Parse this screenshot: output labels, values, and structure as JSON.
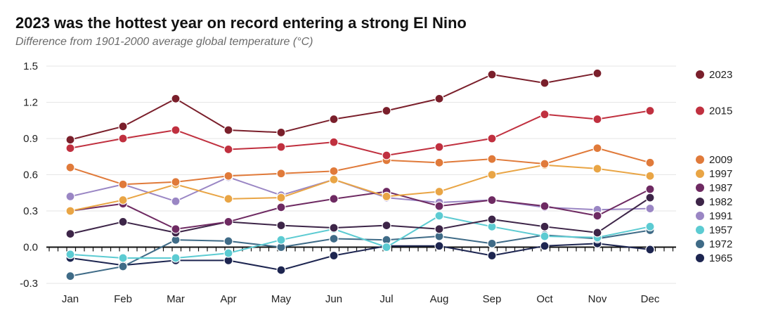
{
  "chart_data": {
    "type": "line",
    "title": "2023 was the hottest year on record entering a strong El Nino",
    "subtitle": "Difference from 1901-2000 average global temperature (°C)",
    "xlabel": "",
    "ylabel": "",
    "ylim": [
      -0.3,
      1.5
    ],
    "yticks": [
      -0.3,
      0.0,
      0.3,
      0.6,
      0.9,
      1.2,
      1.5
    ],
    "ytick_labels": [
      "-0.3",
      "0.0",
      "0.3",
      "0.6",
      "0.9",
      "1.2",
      "1.5"
    ],
    "categories": [
      "Jan",
      "Feb",
      "Mar",
      "Apr",
      "May",
      "Jun",
      "Jul",
      "Aug",
      "Sep",
      "Oct",
      "Nov",
      "Dec"
    ],
    "series": [
      {
        "name": "2023",
        "color": "#7a1f2b",
        "legend_value": 1.43,
        "values": [
          0.89,
          1.0,
          1.23,
          0.97,
          0.95,
          1.06,
          1.13,
          1.23,
          1.43,
          1.36,
          1.44,
          null
        ]
      },
      {
        "name": "2015",
        "color": "#c0303f",
        "legend_value": 1.13,
        "values": [
          0.82,
          0.9,
          0.97,
          0.81,
          0.83,
          0.87,
          0.76,
          0.83,
          0.9,
          1.1,
          1.06,
          1.13
        ]
      },
      {
        "name": "2009",
        "color": "#e07a3a",
        "legend_value": 0.72,
        "values": [
          0.66,
          0.52,
          0.54,
          0.59,
          0.61,
          0.63,
          0.72,
          0.7,
          0.73,
          0.69,
          0.82,
          0.7
        ]
      },
      {
        "name": "1997",
        "color": "#e9a545",
        "legend_value": 0.62,
        "values": [
          0.3,
          0.39,
          0.52,
          0.4,
          0.41,
          0.56,
          0.42,
          0.46,
          0.6,
          0.68,
          0.65,
          0.59
        ]
      },
      {
        "name": "1987",
        "color": "#6e2a62",
        "legend_value": 0.48,
        "values": [
          0.3,
          0.36,
          0.15,
          0.21,
          0.33,
          0.4,
          0.46,
          0.34,
          0.39,
          0.34,
          0.26,
          0.48
        ]
      },
      {
        "name": "1982",
        "color": "#3d2548",
        "legend_value": 0.4,
        "values": [
          0.11,
          0.21,
          0.12,
          0.21,
          0.18,
          0.16,
          0.18,
          0.15,
          0.23,
          0.17,
          0.12,
          0.41
        ]
      },
      {
        "name": "1991",
        "color": "#9a86c4",
        "legend_value": 0.3,
        "values": [
          0.42,
          0.52,
          0.38,
          0.58,
          0.43,
          0.56,
          0.41,
          0.37,
          0.39,
          0.33,
          0.31,
          0.32
        ]
      },
      {
        "name": "1957",
        "color": "#5ccbd2",
        "legend_value": 0.17,
        "values": [
          -0.06,
          -0.09,
          -0.09,
          -0.05,
          0.06,
          0.15,
          0.0,
          0.26,
          0.17,
          0.09,
          0.08,
          0.17
        ]
      },
      {
        "name": "1972",
        "color": "#3f6b87",
        "legend_value": 0.07,
        "values": [
          -0.24,
          -0.16,
          0.06,
          0.05,
          0.0,
          0.07,
          0.06,
          0.09,
          0.03,
          0.1,
          0.07,
          0.14
        ]
      },
      {
        "name": "1965",
        "color": "#1d2550",
        "legend_value": -0.06,
        "values": [
          -0.09,
          -0.15,
          -0.11,
          -0.11,
          -0.19,
          -0.07,
          0.01,
          0.01,
          -0.07,
          0.01,
          0.03,
          -0.02
        ]
      }
    ]
  }
}
